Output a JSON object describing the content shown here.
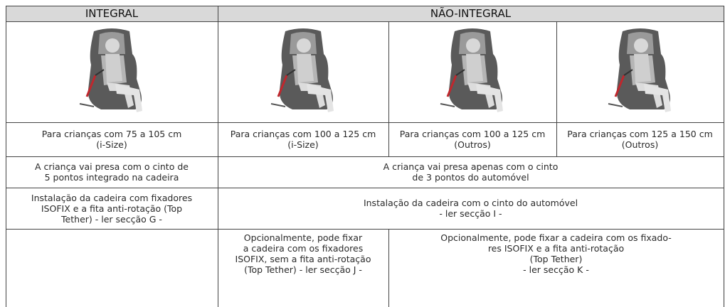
{
  "header": {
    "integral": "INTEGRAL",
    "nao_integral": "NÃO-INTEGRAL"
  },
  "rows": {
    "height": [
      "Para crianças com 75 a 105 cm\n(i-Size)",
      "Para crianças com 100 a 125 cm\n(i-Size)",
      "Para crianças com 100 a 125 cm\n(Outros)",
      "Para crianças com  125 a 150 cm\n(Outros)"
    ],
    "harness": [
      "A criança vai presa com o cinto de\n5 pontos integrado na cadeira",
      "A criança vai presa apenas com o cinto\nde 3 pontos do automóvel"
    ],
    "installation": [
      "Instalação da cadeira com fixadores\nISOFIX e a fita anti-rotação (Top\nTether) - ler secção G -",
      "Instalação da cadeira com o cinto do automóvel\n- ler secção I -"
    ],
    "optional": [
      "Opcionalmente, pode fixar\na cadeira com os fixadores\nISOFIX, sem a fita anti-rotação\n(Top Tether) - ler secção J -",
      "Opcionalmente, pode fixar a cadeira com os fixado-\nres ISOFIX e a fita anti-rotação\n(Top Tether)\n- ler secção K -"
    ]
  }
}
